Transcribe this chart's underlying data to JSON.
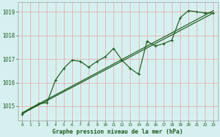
{
  "title": "Graphe pression niveau de la mer (hPa)",
  "bg_color": "#d6f0f0",
  "grid_color": "#e8aaaa",
  "line_color": "#1a5c1a",
  "text_color": "#1a5c1a",
  "xlim": [
    -0.5,
    23.5
  ],
  "ylim": [
    1014.4,
    1019.4
  ],
  "yticks": [
    1015,
    1016,
    1017,
    1018,
    1019
  ],
  "xticks": [
    0,
    1,
    2,
    3,
    4,
    5,
    6,
    7,
    8,
    9,
    10,
    11,
    12,
    13,
    14,
    15,
    16,
    17,
    18,
    19,
    20,
    21,
    22,
    23
  ],
  "main_x": [
    0,
    1,
    2,
    3,
    4,
    5,
    6,
    7,
    8,
    9,
    10,
    11,
    12,
    13,
    14,
    15,
    16,
    17,
    18,
    19,
    20,
    21,
    22,
    23
  ],
  "main_y": [
    1014.65,
    1014.9,
    1015.1,
    1015.15,
    1016.1,
    1016.6,
    1016.95,
    1016.9,
    1016.65,
    1016.9,
    1017.1,
    1017.45,
    1016.95,
    1016.6,
    1016.35,
    1017.75,
    1017.55,
    1017.65,
    1017.8,
    1018.75,
    1019.05,
    1019.0,
    1018.95,
    1018.95
  ],
  "trend1_x": [
    0,
    23
  ],
  "trend1_y": [
    1014.68,
    1018.95
  ],
  "trend2_x": [
    0,
    23
  ],
  "trend2_y": [
    1014.72,
    1019.05
  ],
  "figwidth": 3.2,
  "figheight": 2.0,
  "dpi": 100
}
